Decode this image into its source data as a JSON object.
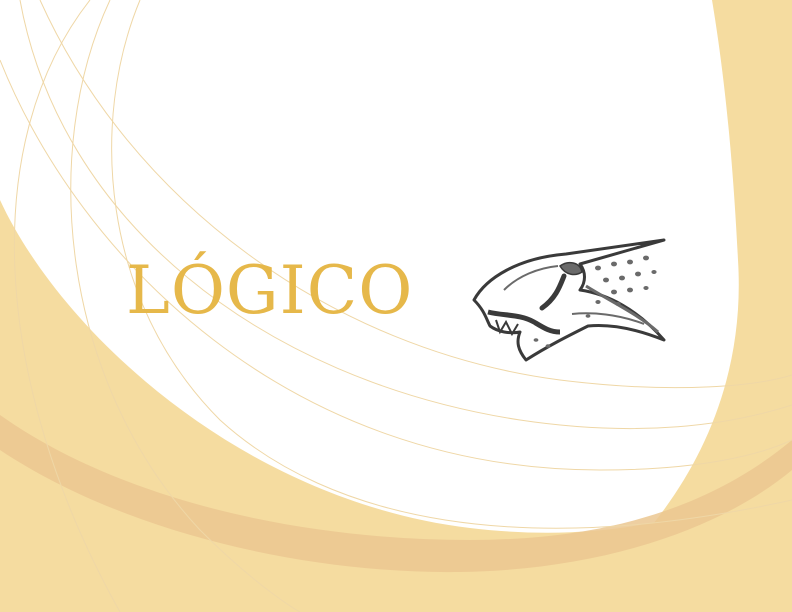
{
  "brand": {
    "name": "LÓGICO",
    "mascot_icon": "cheetah-head-icon"
  },
  "colors": {
    "gold": "#E6B84A",
    "band": "#F5DCA0",
    "band_dark": "#EBC791",
    "thin_line": "#EFD7A6",
    "mascot_gray": "#6A6A6A",
    "mascot_outline": "#3A3A3A"
  }
}
